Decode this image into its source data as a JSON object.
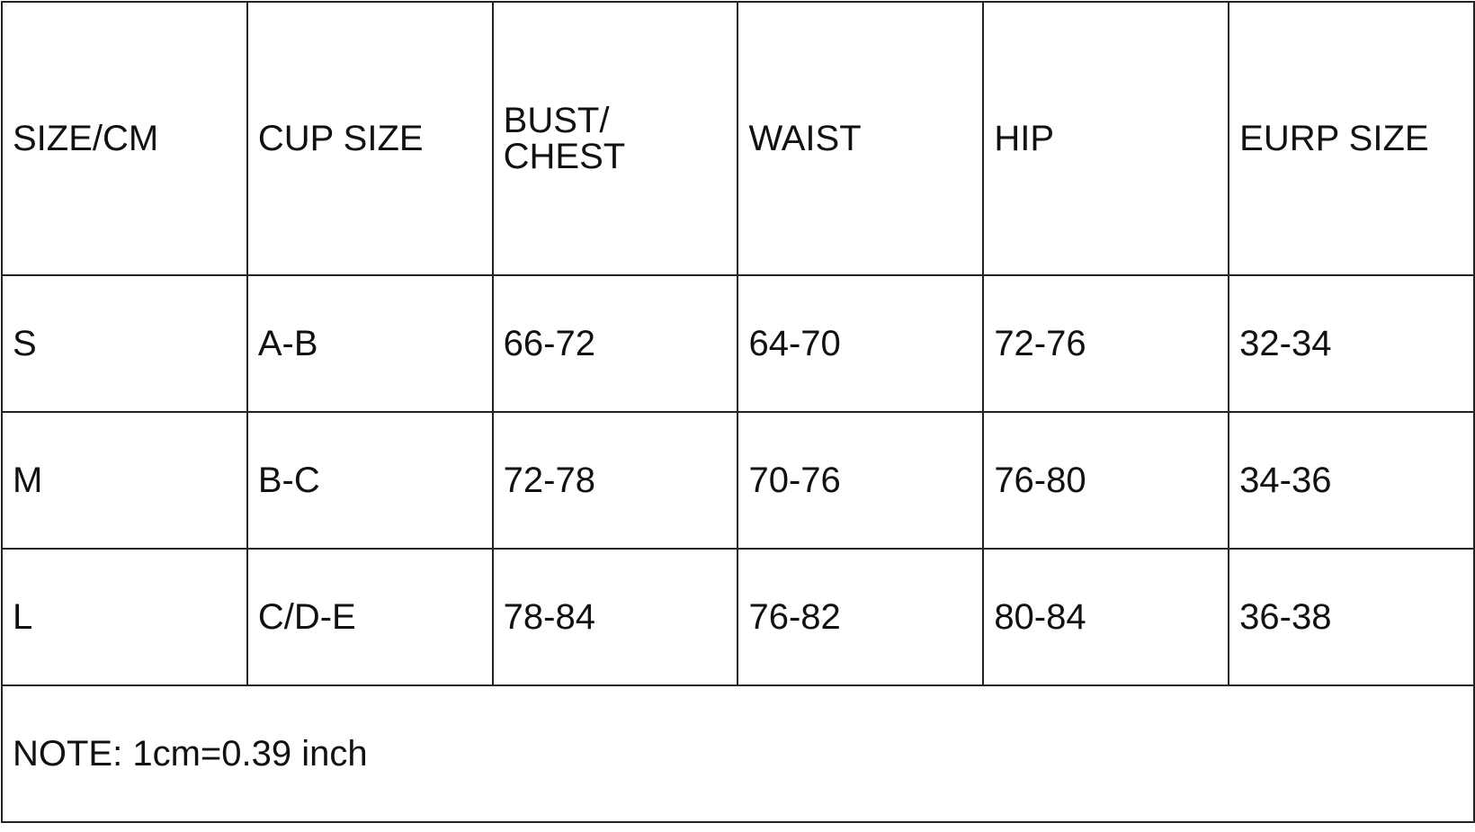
{
  "table": {
    "headers": [
      "SIZE/CM",
      "CUP SIZE",
      "BUST/\nCHEST",
      "WAIST",
      "HIP",
      "EURP SIZE"
    ],
    "rows": [
      [
        "S",
        "A-B",
        "66-72",
        "64-70",
        "72-76",
        "32-34"
      ],
      [
        "M",
        "B-C",
        "72-78",
        "70-76",
        "76-80",
        "34-36"
      ],
      [
        "L",
        "C/D-E",
        "78-84",
        "76-82",
        "80-84",
        "36-38"
      ]
    ],
    "note": "NOTE: 1cm=0.39 inch"
  }
}
